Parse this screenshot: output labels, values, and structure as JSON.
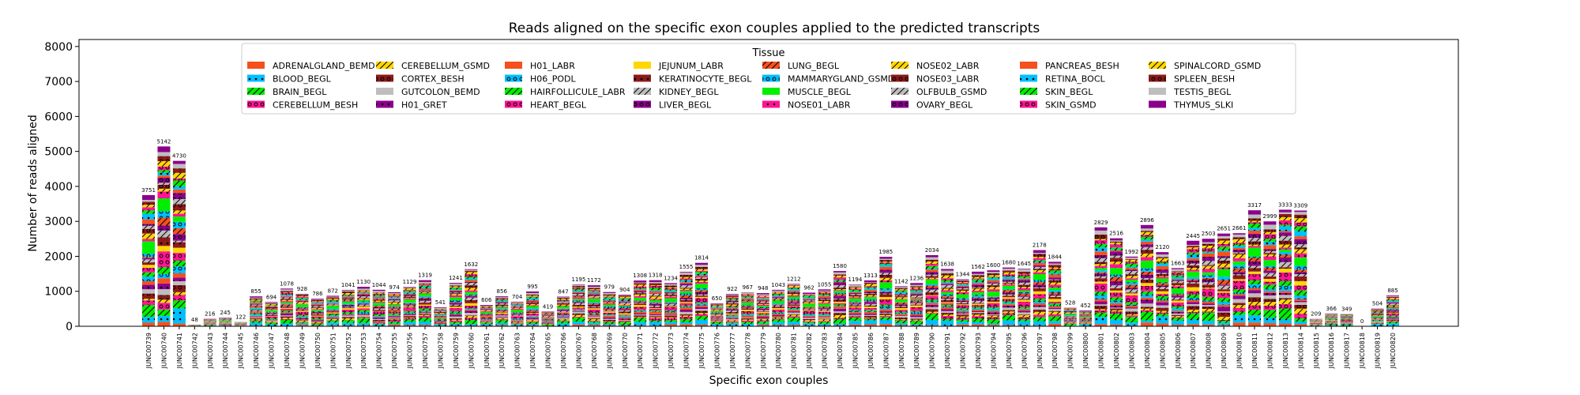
{
  "chart_data": {
    "type": "bar",
    "stacked": true,
    "title": "Reads aligned on the specific exon couples applied to the predicted transcripts",
    "xlabel": "Specific exon couples",
    "ylabel": "Number of reads aligned",
    "ylim": [
      0,
      8200
    ],
    "yticks": [
      "0",
      "1000",
      "2000",
      "3000",
      "4000",
      "5000",
      "6000",
      "7000",
      "8000"
    ],
    "grid": false,
    "legend": {
      "title": "Tissue",
      "placement": "top-center",
      "columns": 8
    },
    "categories": [
      "JUNC00739",
      "JUNC00740",
      "JUNC00741",
      "JUNC00742",
      "JUNC00743",
      "JUNC00744",
      "JUNC00745",
      "JUNC00746",
      "JUNC00747",
      "JUNC00748",
      "JUNC00749",
      "JUNC00750",
      "JUNC00751",
      "JUNC00752",
      "JUNC00753",
      "JUNC00754",
      "JUNC00755",
      "JUNC00756",
      "JUNC00757",
      "JUNC00758",
      "JUNC00759",
      "JUNC00760",
      "JUNC00761",
      "JUNC00762",
      "JUNC00763",
      "JUNC00764",
      "JUNC00765",
      "JUNC00766",
      "JUNC00767",
      "JUNC00768",
      "JUNC00769",
      "JUNC00770",
      "JUNC00771",
      "JUNC00772",
      "JUNC00773",
      "JUNC00774",
      "JUNC00775",
      "JUNC00776",
      "JUNC00777",
      "JUNC00778",
      "JUNC00779",
      "JUNC00780",
      "JUNC00781",
      "JUNC00782",
      "JUNC00783",
      "JUNC00784",
      "JUNC00785",
      "JUNC00786",
      "JUNC00787",
      "JUNC00788",
      "JUNC00789",
      "JUNC00790",
      "JUNC00791",
      "JUNC00792",
      "JUNC00793",
      "JUNC00794",
      "JUNC00795",
      "JUNC00796",
      "JUNC00797",
      "JUNC00798",
      "JUNC00799",
      "JUNC00800",
      "JUNC00801",
      "JUNC00802",
      "JUNC00803",
      "JUNC00804",
      "JUNC00805",
      "JUNC00806",
      "JUNC00807",
      "JUNC00808",
      "JUNC00809",
      "JUNC00810",
      "JUNC00811",
      "JUNC00812",
      "JUNC00813",
      "JUNC00814",
      "JUNC00815",
      "JUNC00816",
      "JUNC00817",
      "JUNC00818",
      "JUNC00819",
      "JUNC00820"
    ],
    "totals": [
      3751,
      5142,
      4730,
      48,
      216,
      245,
      122,
      855,
      694,
      1078,
      928,
      786,
      872,
      1041,
      1130,
      1044,
      974,
      1129,
      1319,
      541,
      1241,
      1632,
      606,
      856,
      704,
      995,
      419,
      847,
      1195,
      1172,
      979,
      904,
      1308,
      1318,
      1234,
      1555,
      1814,
      650,
      922,
      967,
      948,
      1043,
      1212,
      962,
      1055,
      1580,
      1194,
      1313,
      1985,
      1142,
      1236,
      2034,
      1638,
      1344,
      1562,
      1600,
      1680,
      1645,
      2178,
      1844,
      528,
      452,
      2829,
      2516,
      1992,
      2896,
      2120,
      1663,
      2445,
      2503,
      2651,
      2661,
      3317,
      2999,
      3333,
      3309,
      209,
      366,
      349,
      0,
      504,
      885
    ],
    "total_labels": [
      "3751",
      "5142",
      "4730",
      "48",
      "216",
      "245",
      "122",
      "855",
      "694",
      "1078",
      "928",
      "786",
      "872",
      "1041",
      "1130",
      "1044",
      "974",
      "1129",
      "1319",
      "541",
      "1241",
      "1632",
      "606",
      "856",
      "704",
      "995",
      "419",
      "847",
      "1195",
      "1172",
      "979",
      "904",
      "1308",
      "1318",
      "1234",
      "1555",
      "1814",
      "650",
      "922",
      "967",
      "948",
      "1043",
      "1212",
      "962",
      "1055",
      "1580",
      "1194",
      "1313",
      "1985",
      "1142",
      "1236",
      "2034",
      "1638",
      "1344",
      "1562",
      "1600",
      "1680",
      "1645",
      "2178",
      "1844",
      "528",
      "452",
      "2829",
      "2516",
      "1992",
      "2896",
      "2120",
      "1663",
      "2445",
      "2503",
      "2651",
      "2661",
      "3317",
      "2999",
      "3333",
      "3309",
      "209",
      "366",
      "349",
      "0",
      "504",
      "885"
    ],
    "series": [
      {
        "name": "ADRENALGLAND_BEMD",
        "color": "#f4511e",
        "hatch": "none"
      },
      {
        "name": "BLOOD_BEGL",
        "color": "#00bfff",
        "hatch": "dot"
      },
      {
        "name": "BRAIN_BEGL",
        "color": "#00ee00",
        "hatch": "slash"
      },
      {
        "name": "CEREBELLUM_BESH",
        "color": "#ff1493",
        "hatch": "ring"
      },
      {
        "name": "CEREBELLUM_GSMD",
        "color": "#ffd700",
        "hatch": "slash"
      },
      {
        "name": "CORTEX_BESH",
        "color": "#8b1a1a",
        "hatch": "ring"
      },
      {
        "name": "GUTCOLON_BEMD",
        "color": "#bebebe",
        "hatch": "none"
      },
      {
        "name": "H01_GRET",
        "color": "#8b008b",
        "hatch": "dot"
      },
      {
        "name": "H01_LABR",
        "color": "#f4511e",
        "hatch": "none"
      },
      {
        "name": "H06_PODL",
        "color": "#00bfff",
        "hatch": "ring"
      },
      {
        "name": "HAIRFOLLICULE_LABR",
        "color": "#00ee00",
        "hatch": "slash"
      },
      {
        "name": "HEART_BEGL",
        "color": "#ff1493",
        "hatch": "ring"
      },
      {
        "name": "JEJUNUM_LABR",
        "color": "#ffd700",
        "hatch": "none"
      },
      {
        "name": "KERATINOCYTE_BEGL",
        "color": "#8b1a1a",
        "hatch": "dot"
      },
      {
        "name": "KIDNEY_BEGL",
        "color": "#bebebe",
        "hatch": "slash"
      },
      {
        "name": "LIVER_BEGL",
        "color": "#8b008b",
        "hatch": "ring"
      },
      {
        "name": "LUNG_BEGL",
        "color": "#f4511e",
        "hatch": "slash"
      },
      {
        "name": "MAMMARYGLAND_GSMD",
        "color": "#00bfff",
        "hatch": "ring"
      },
      {
        "name": "MUSCLE_BEGL",
        "color": "#00ee00",
        "hatch": "none"
      },
      {
        "name": "NOSE01_LABR",
        "color": "#ff1493",
        "hatch": "dot"
      },
      {
        "name": "NOSE02_LABR",
        "color": "#ffd700",
        "hatch": "slash"
      },
      {
        "name": "NOSE03_LABR",
        "color": "#8b1a1a",
        "hatch": "ring"
      },
      {
        "name": "OLFBULB_GSMD",
        "color": "#bebebe",
        "hatch": "slash"
      },
      {
        "name": "OVARY_BEGL",
        "color": "#8b008b",
        "hatch": "ring"
      },
      {
        "name": "PANCREAS_BESH",
        "color": "#f4511e",
        "hatch": "none"
      },
      {
        "name": "RETINA_BOCL",
        "color": "#00bfff",
        "hatch": "dot"
      },
      {
        "name": "SKIN_BEGL",
        "color": "#00ee00",
        "hatch": "slash"
      },
      {
        "name": "SKIN_GSMD",
        "color": "#ff1493",
        "hatch": "ring"
      },
      {
        "name": "SPINALCORD_GSMD",
        "color": "#ffd700",
        "hatch": "slash"
      },
      {
        "name": "SPLEEN_BESH",
        "color": "#8b1a1a",
        "hatch": "ring"
      },
      {
        "name": "TESTIS_BEGL",
        "color": "#bebebe",
        "hatch": "none"
      },
      {
        "name": "THYMUS_SLKI",
        "color": "#8b008b",
        "hatch": "none"
      }
    ]
  }
}
